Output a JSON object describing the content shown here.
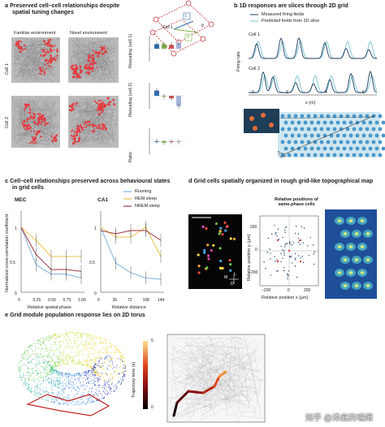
{
  "panel_a": {
    "letter": "a",
    "title_line1": "Preserved cell–cell relationships despite",
    "title_line2": "spatial tuning changes",
    "env_familiar": "Familiar environment",
    "env_novel": "Novel environment",
    "cell1": "Cell 1",
    "cell2": "Cell 2",
    "ylabel_rescaling_cell1": "Rescaling (cell 1)",
    "ylabel_rescaling_cell2": "Rescaling (cell 2)",
    "ylabel_ratio": "Ratio",
    "diagram_L": "L",
    "diagram_R": "R",
    "diagram_cell1": "Cell 1",
    "diagram_theta": "θ"
  },
  "panel_b": {
    "letter": "b",
    "title": "1D responses are slices through 2D grid",
    "legend_measured": "Measured firing fields",
    "legend_predicted": "Predicted fields from 2D slice",
    "ylabel": "Firing rate",
    "xlabel": "x (m)",
    "cell1": "Cell 1",
    "cell2": "Cell 2",
    "x_ticks": [
      "0",
      "2",
      "4",
      "6"
    ]
  },
  "panel_c": {
    "letter": "c",
    "title_line1": "Cell–cell relationships preserved across behavioural states",
    "title_line2": "in grid cells",
    "mec": "MEC",
    "ca1": "CA1",
    "ylabel": "Normalized cross-correlation coefficient",
    "xlabel_mec": "Relative spatial phase",
    "xlabel_ca1": "Relative distance",
    "legend": [
      "Running",
      "REM sleep",
      "NREM sleep"
    ],
    "colors": {
      "running": "#7fb3e0",
      "rem": "#e8c34a",
      "nrem": "#a2363e"
    },
    "y_ticks": [
      "1",
      "0.5",
      "0"
    ],
    "mec_x_ticks": [
      "0",
      "0.25",
      "0.50",
      "0.75",
      "1.00"
    ],
    "ca1_x_ticks": [
      "0",
      "36",
      "72",
      "108",
      "144"
    ]
  },
  "panel_d": {
    "letter": "d",
    "title": "Grid cells spatially organized in rough grid-like topographical map",
    "scatter_title_line1": "Relative positions of",
    "scatter_title_line2": "same-phase cells",
    "ylabel": "Relative position y (µm)",
    "xlabel": "Relative position x (µm)",
    "y_ticks": [
      "200",
      "0",
      "−200"
    ],
    "x_ticks": [
      "−200",
      "0",
      "200"
    ],
    "compass_M": "M",
    "compass_L": "L",
    "compass_D": "D"
  },
  "panel_e": {
    "letter": "e",
    "title": "Grid module population response lies on 2D torus",
    "colorbar_label": "Trajectory time (s)",
    "colorbar_ticks": [
      "5",
      "0"
    ]
  },
  "watermark": "知乎 @泽底的墙姆",
  "chart_data": [
    {
      "type": "bar",
      "panel": "a-rescaling-cell1",
      "categories": [
        "1",
        "2",
        "3",
        "4"
      ],
      "values": [
        1.35,
        1.35,
        1.3,
        1.45
      ],
      "colors": [
        "#2f6db3",
        "#7fb04a",
        "#d4585b",
        "#a7b4d8"
      ],
      "ylim": [
        0,
        2
      ]
    },
    {
      "type": "bar",
      "panel": "a-rescaling-cell2",
      "categories": [
        "1",
        "2",
        "3",
        "4"
      ],
      "values": [
        1.4,
        0.95,
        0.8,
        0.2
      ],
      "colors": [
        "#2f6db3",
        "#7fb04a",
        "#d4585b",
        "#a7b4d8"
      ],
      "ylim": [
        0,
        2
      ]
    },
    {
      "type": "bar",
      "panel": "a-ratio",
      "categories": [
        "1",
        "2",
        "3",
        "4"
      ],
      "values": [
        1.0,
        0.9,
        0.95,
        0.95
      ],
      "colors": [
        "#2f6db3",
        "#7fb04a",
        "#d4585b",
        "#a7b4d8"
      ],
      "ylim": [
        0,
        2
      ]
    },
    {
      "type": "line",
      "panel": "c-MEC",
      "x": [
        0,
        0.25,
        0.5,
        0.75,
        1.0
      ],
      "xlim": [
        0,
        1
      ],
      "ylim": [
        0,
        1.25
      ],
      "series": [
        {
          "name": "Running",
          "values": [
            1.0,
            0.42,
            0.28,
            0.28,
            0.22
          ]
        },
        {
          "name": "REM sleep",
          "values": [
            1.0,
            0.8,
            0.55,
            0.55,
            0.55
          ]
        },
        {
          "name": "NREM sleep",
          "values": [
            1.0,
            0.58,
            0.35,
            0.35,
            0.32
          ]
        }
      ]
    },
    {
      "type": "line",
      "panel": "c-CA1",
      "x": [
        0,
        36,
        72,
        108,
        144
      ],
      "xlim": [
        0,
        144
      ],
      "ylim": [
        0,
        1.25
      ],
      "series": [
        {
          "name": "Running",
          "values": [
            1.0,
            0.45,
            0.3,
            0.22,
            0.2
          ]
        },
        {
          "name": "REM sleep",
          "values": [
            1.0,
            0.85,
            0.85,
            1.0,
            0.55
          ]
        },
        {
          "name": "NREM sleep",
          "values": [
            0.95,
            0.9,
            0.95,
            0.95,
            0.8
          ]
        }
      ]
    }
  ]
}
